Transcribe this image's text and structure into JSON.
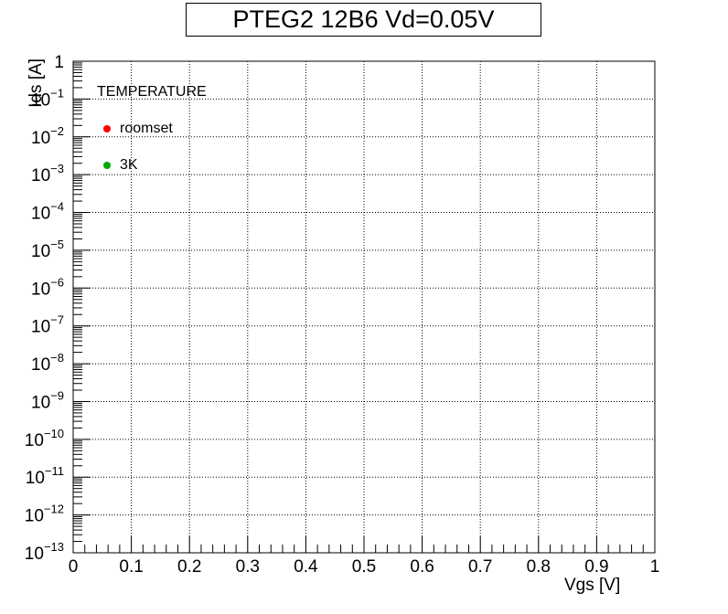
{
  "chart_data": {
    "type": "scatter",
    "title": "PTEG2 12B6 Vd=0.05V",
    "xlabel": "Vgs [V]",
    "ylabel": "Ids [A]",
    "xlim": [
      0,
      1
    ],
    "ylim": [
      1e-13,
      1
    ],
    "yscale": "log",
    "grid": true,
    "x_ticks": [
      "0",
      "0.1",
      "0.2",
      "0.3",
      "0.4",
      "0.5",
      "0.6",
      "0.7",
      "0.8",
      "0.9",
      "1"
    ],
    "y_ticks": [
      {
        "base": "1",
        "exp": ""
      },
      {
        "base": "10",
        "exp": "−1"
      },
      {
        "base": "10",
        "exp": "−2"
      },
      {
        "base": "10",
        "exp": "−3"
      },
      {
        "base": "10",
        "exp": "−4"
      },
      {
        "base": "10",
        "exp": "−5"
      },
      {
        "base": "10",
        "exp": "−6"
      },
      {
        "base": "10",
        "exp": "−7"
      },
      {
        "base": "10",
        "exp": "−8"
      },
      {
        "base": "10",
        "exp": "−9"
      },
      {
        "base": "10",
        "exp": "−10"
      },
      {
        "base": "10",
        "exp": "−11"
      },
      {
        "base": "10",
        "exp": "−12"
      },
      {
        "base": "10",
        "exp": "−13"
      }
    ],
    "legend": {
      "title": "TEMPERATURE",
      "placement": "top-left",
      "entries": [
        {
          "name": "roomset",
          "color": "#ff0000"
        },
        {
          "name": "3K",
          "color": "#00aa00"
        }
      ]
    },
    "series": [
      {
        "name": "roomset",
        "color": "#ff0000",
        "x": [],
        "y": []
      },
      {
        "name": "3K",
        "color": "#00aa00",
        "x": [],
        "y": []
      }
    ]
  }
}
